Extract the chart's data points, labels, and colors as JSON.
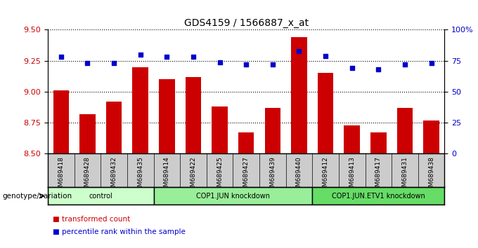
{
  "title": "GDS4159 / 1566887_x_at",
  "samples": [
    "GSM689418",
    "GSM689428",
    "GSM689432",
    "GSM689435",
    "GSM689414",
    "GSM689422",
    "GSM689425",
    "GSM689427",
    "GSM689439",
    "GSM689440",
    "GSM689412",
    "GSM689413",
    "GSM689417",
    "GSM689431",
    "GSM689438"
  ],
  "bar_values": [
    9.01,
    8.82,
    8.92,
    9.2,
    9.1,
    9.12,
    8.88,
    8.67,
    8.87,
    9.44,
    9.15,
    8.73,
    8.67,
    8.87,
    8.77
  ],
  "percentile_values": [
    78,
    73,
    73,
    80,
    78,
    78,
    74,
    72,
    72,
    83,
    79,
    69,
    68,
    72,
    73
  ],
  "bar_color": "#cc0000",
  "percentile_color": "#0000cc",
  "ylim_left": [
    8.5,
    9.5
  ],
  "ylim_right": [
    0,
    100
  ],
  "yticks_left": [
    8.5,
    8.75,
    9.0,
    9.25,
    9.5
  ],
  "yticks_right": [
    0,
    25,
    50,
    75,
    100
  ],
  "groups": [
    {
      "label": "control",
      "start": 0,
      "end": 3
    },
    {
      "label": "COP1.JUN knockdown",
      "start": 4,
      "end": 9
    },
    {
      "label": "COP1.JUN.ETV1 knockdown",
      "start": 10,
      "end": 14
    }
  ],
  "group_colors": [
    "#ccffcc",
    "#99ee99",
    "#66dd66"
  ],
  "xlabel_genotype": "genotype/variation",
  "legend_bar_label": "transformed count",
  "legend_pct_label": "percentile rank within the sample",
  "tick_label_color_left": "#cc0000",
  "tick_label_color_right": "#0000cc",
  "xticklabel_bg": "#cccccc"
}
